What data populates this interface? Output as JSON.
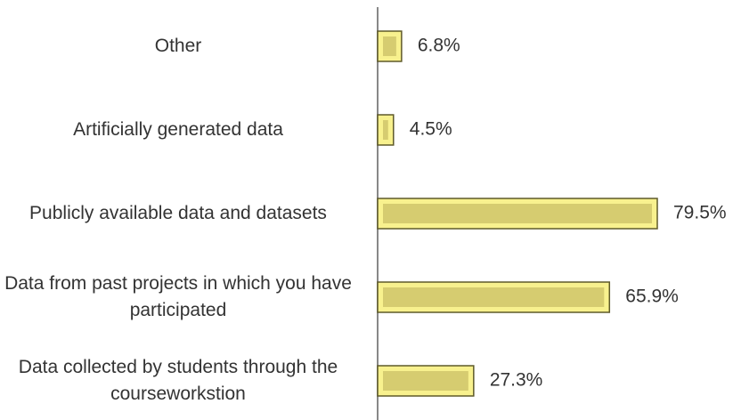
{
  "chart_data": {
    "type": "hbar",
    "categories": [
      "Other",
      "Artificially generated data",
      "Publicly available data and datasets",
      "Data from past projects in which you have participated",
      "Data collected by students through the courseworkstion"
    ],
    "values": [
      6.8,
      4.5,
      79.5,
      65.9,
      27.3
    ],
    "value_labels": [
      "6.8%",
      "4.5%",
      "79.5%",
      "65.9%",
      "27.3%"
    ],
    "color": "#f8f18e"
  }
}
